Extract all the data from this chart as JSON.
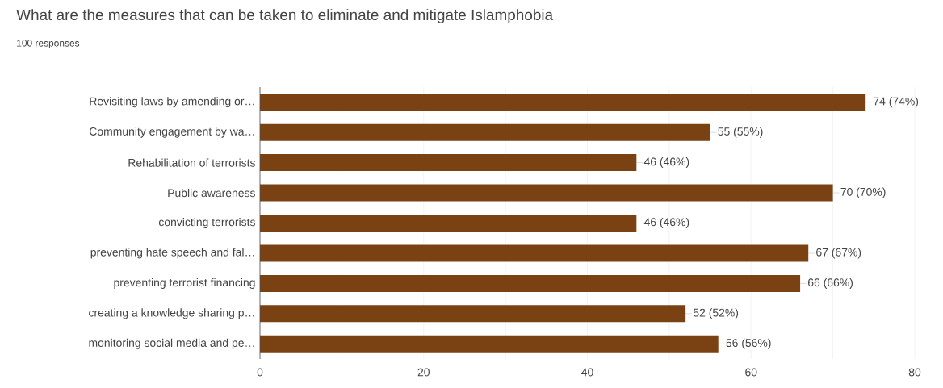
{
  "chart_data": {
    "type": "bar",
    "orientation": "horizontal",
    "title": "What are the measures that can be taken to eliminate and mitigate Islamphobia",
    "subtitle": "100 responses",
    "categories": [
      "Revisiting laws by amending or…",
      "Community engagement by wa…",
      "Rehabilitation of terrorists",
      "Public awareness",
      "convicting terrorists",
      "preventing hate speech and fal…",
      "preventing terrorist financing",
      "creating a knowledge sharing p…",
      "monitoring social media and pe…"
    ],
    "values": [
      74,
      55,
      46,
      70,
      46,
      67,
      66,
      52,
      56
    ],
    "value_labels": [
      "74 (74%)",
      "55 (55%)",
      "46 (46%)",
      "70 (70%)",
      "46 (46%)",
      "67 (67%)",
      "66 (66%)",
      "52 (52%)",
      "56 (56%)"
    ],
    "color": "#7a4213",
    "xlim": [
      0,
      80
    ],
    "xticks": [
      0,
      {
        "value": 10,
        "label": null
      },
      20,
      {
        "value": 30,
        "label": null
      },
      40,
      {
        "value": 50,
        "label": null
      },
      60,
      {
        "value": 70,
        "label": null
      },
      80
    ],
    "grid": "x"
  }
}
